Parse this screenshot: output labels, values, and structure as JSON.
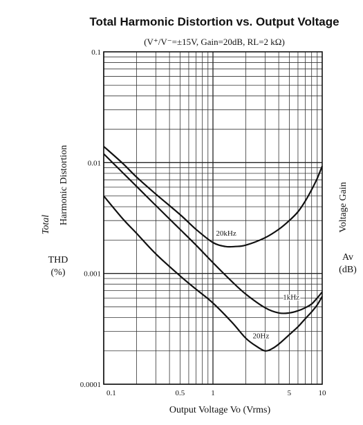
{
  "chart_data": {
    "type": "line",
    "title": "Total Harmonic Distortion vs. Output Voltage",
    "conditions": "(V⁺/V⁻=±15V, Gain=20dB, RL=2 kΩ)",
    "xlabel": "Output Voltage  Vo (Vrms)",
    "ylabel_lines": [
      "Total",
      "Harmonic Distortion"
    ],
    "ylabel_symbol": "THD",
    "ylabel_unit": "(%)",
    "x_scale": "log",
    "y_scale": "log",
    "xlim": [
      0.1,
      10
    ],
    "ylim": [
      0.0001,
      0.1
    ],
    "x_tick_labels": [
      "0.1",
      "0.5",
      "1",
      "5",
      "10"
    ],
    "y_tick_labels": [
      "0.0001",
      "0.001",
      "0.01",
      "0.1"
    ],
    "grid": true,
    "series": [
      {
        "name": "20kHz",
        "x": [
          0.1,
          0.15,
          0.2,
          0.3,
          0.5,
          0.7,
          1.0,
          1.3,
          1.6,
          2.0,
          3.0,
          4.0,
          5.0,
          6.0,
          7.0,
          8.0,
          9.0,
          10.0
        ],
        "y": [
          0.014,
          0.0098,
          0.0074,
          0.0052,
          0.0034,
          0.0025,
          0.0019,
          0.00175,
          0.00175,
          0.0018,
          0.0021,
          0.0025,
          0.003,
          0.0036,
          0.0045,
          0.0057,
          0.0072,
          0.0093
        ]
      },
      {
        "name": "1kHz",
        "x": [
          0.1,
          0.2,
          0.3,
          0.5,
          0.7,
          1.0,
          1.5,
          2.0,
          3.0,
          4.0,
          5.0,
          6.0,
          7.0,
          8.0,
          9.0,
          10.0
        ],
        "y": [
          0.012,
          0.0061,
          0.0041,
          0.0025,
          0.0018,
          0.00125,
          0.00084,
          0.00065,
          0.00049,
          0.00044,
          0.00044,
          0.00046,
          0.00049,
          0.00053,
          0.0006,
          0.00068
        ]
      },
      {
        "name": "20Hz",
        "x": [
          0.1,
          0.15,
          0.2,
          0.3,
          0.5,
          0.7,
          1.0,
          1.5,
          2.0,
          2.5,
          3.0,
          3.5,
          4.0,
          5.0,
          6.0,
          7.0,
          8.0,
          9.0,
          10.0
        ],
        "y": [
          0.005,
          0.0031,
          0.0023,
          0.0015,
          0.00095,
          0.00072,
          0.00054,
          0.00036,
          0.00026,
          0.00022,
          0.0002,
          0.00021,
          0.00023,
          0.00028,
          0.00033,
          0.00039,
          0.00045,
          0.00052,
          0.00062
        ]
      }
    ]
  },
  "right_axis_fragment": {
    "label": "Voltage Gain",
    "symbol": "Av",
    "unit": "(dB)"
  }
}
